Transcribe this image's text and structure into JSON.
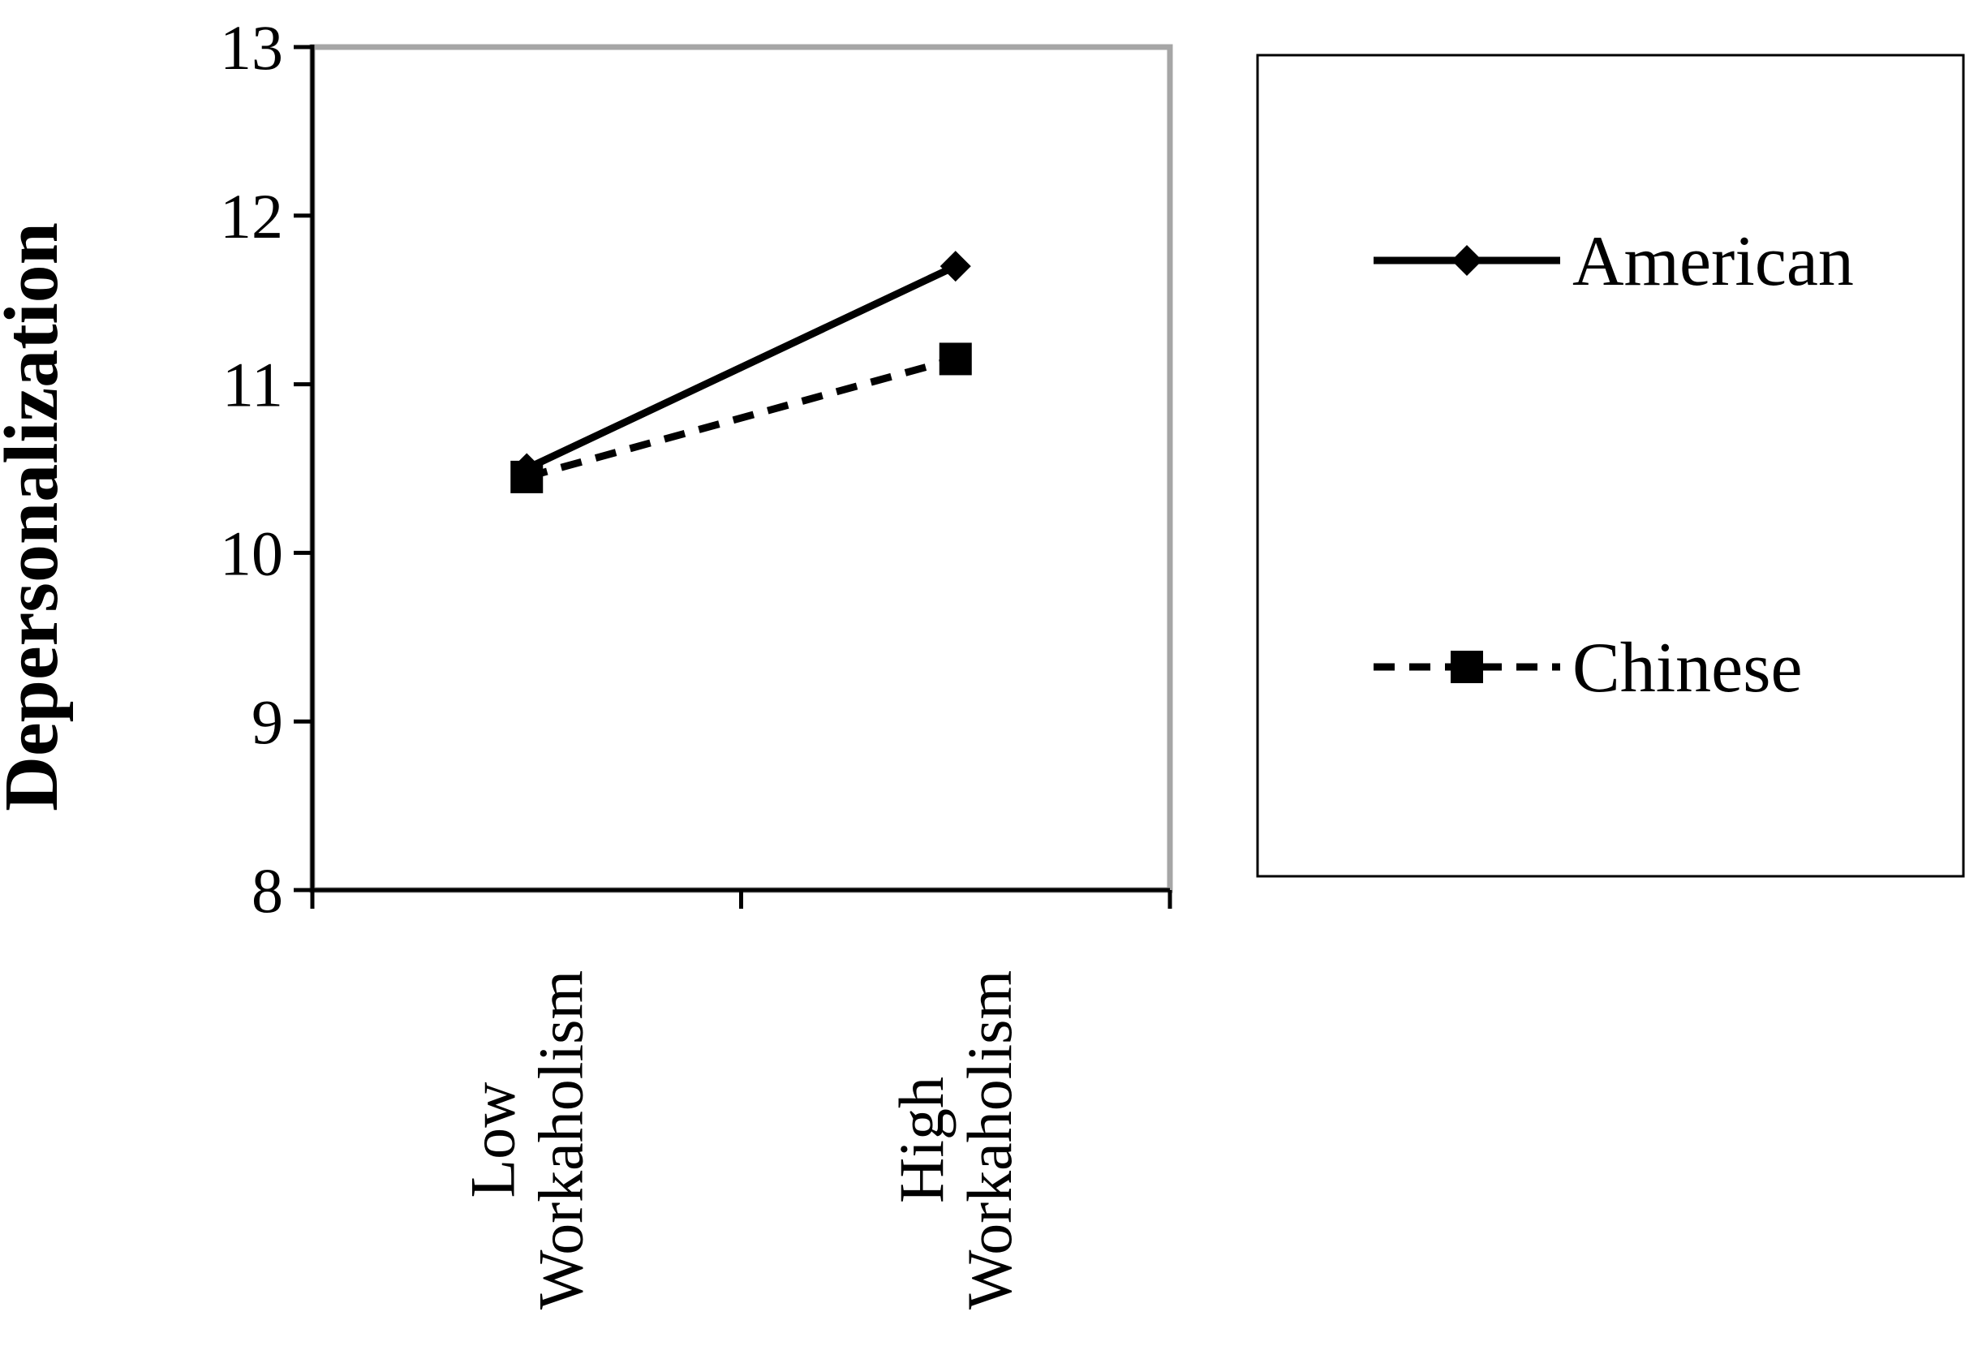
{
  "chart_data": {
    "type": "line",
    "title": "",
    "xlabel": "",
    "ylabel": "Depersonalization",
    "categories": [
      "Low Workaholism",
      "High Workaholism"
    ],
    "category_lines": [
      [
        "Low",
        "Workaholism"
      ],
      [
        "High",
        "Workaholism"
      ]
    ],
    "ylim": [
      8,
      13
    ],
    "yticks": [
      8,
      9,
      10,
      11,
      12,
      13
    ],
    "series": [
      {
        "name": "American",
        "values": [
          10.5,
          11.7
        ],
        "line_style": "solid",
        "marker": "diamond",
        "color": "#000000"
      },
      {
        "name": "Chinese",
        "values": [
          10.45,
          11.15
        ],
        "line_style": "dashed",
        "marker": "square",
        "color": "#000000"
      }
    ],
    "legend_position": "right",
    "grid": false,
    "plot_border_color": "#a6a6a6",
    "axis_color": "#000000",
    "background": "#ffffff"
  }
}
